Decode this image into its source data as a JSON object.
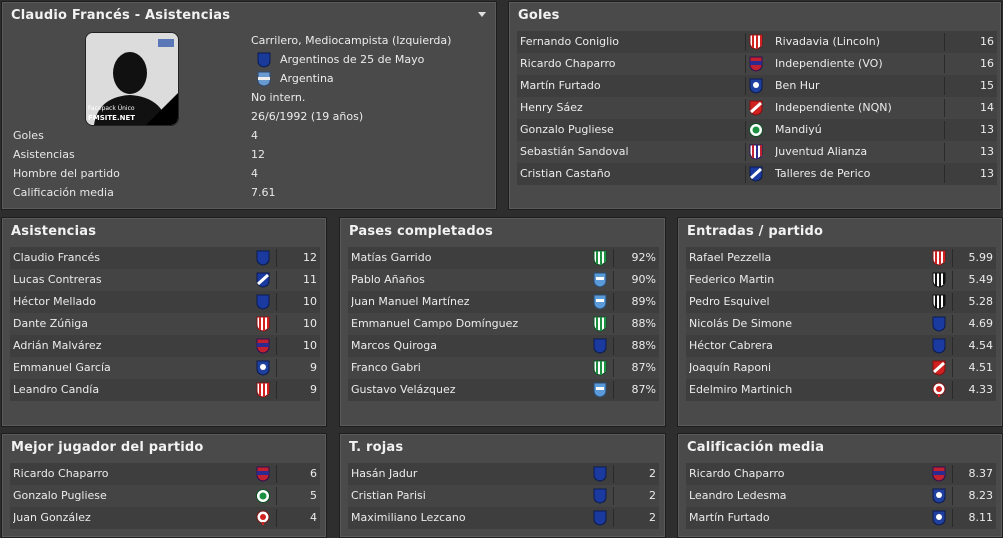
{
  "profile": {
    "title": "Claudio Francés - Asistencias",
    "position": "Carrilero, Mediocampista (Izquierda)",
    "club": "Argentinos de 25 de Mayo",
    "nation": "Argentina",
    "international": "No intern.",
    "dob": "26/6/1992 (19 años)",
    "photo_text1": "Facepack Único",
    "photo_text2": "FMSITE.NET",
    "stats": [
      {
        "label": "Goles",
        "value": "4"
      },
      {
        "label": "Asistencias",
        "value": "12"
      },
      {
        "label": "Hombre del partido",
        "value": "4"
      },
      {
        "label": "Calificación media",
        "value": "7.61"
      }
    ]
  },
  "goles": {
    "title": "Goles",
    "rows": [
      {
        "player": "Fernando Coniglio",
        "club": "Rivadavia (Lincoln)",
        "value": "16",
        "badge": "red-white-stripes-icon"
      },
      {
        "player": "Ricardo Chaparro",
        "club": "Independiente (VO)",
        "value": "16",
        "badge": "red-blue-crest-icon"
      },
      {
        "player": "Martín Furtado",
        "club": "Ben Hur",
        "value": "15",
        "badge": "blue-white-crest-icon"
      },
      {
        "player": "Henry Sáez",
        "club": "Independiente (NQN)",
        "value": "14",
        "badge": "red-white-diagonal-icon"
      },
      {
        "player": "Gonzalo Pugliese",
        "club": "Mandiyú",
        "value": "13",
        "badge": "green-white-round-icon"
      },
      {
        "player": "Sebastián Sandoval",
        "club": "Juventud Alianza",
        "value": "13",
        "badge": "red-blue-stripes-icon"
      },
      {
        "player": "Cristian Castaño",
        "club": "Talleres de Perico",
        "value": "13",
        "badge": "blue-white-diagonal-icon"
      }
    ]
  },
  "asistencias": {
    "title": "Asistencias",
    "rows": [
      {
        "player": "Claudio Francés",
        "value": "12",
        "badge": "blue-shield-icon"
      },
      {
        "player": "Lucas Contreras",
        "value": "11",
        "badge": "blue-white-diagonal-icon"
      },
      {
        "player": "Héctor Mellado",
        "value": "10",
        "badge": "blue-shield-icon"
      },
      {
        "player": "Dante Zúñiga",
        "value": "10",
        "badge": "red-white-stripes-icon"
      },
      {
        "player": "Adrián Malvárez",
        "value": "10",
        "badge": "red-blue-crest-icon"
      },
      {
        "player": "Emmanuel García",
        "value": "9",
        "badge": "blue-white-crest-icon"
      },
      {
        "player": "Leandro Candía",
        "value": "9",
        "badge": "red-white-stripes-icon"
      }
    ]
  },
  "pases": {
    "title": "Pases completados",
    "rows": [
      {
        "player": "Matías Garrido",
        "value": "92%",
        "badge": "green-white-stripes-icon"
      },
      {
        "player": "Pablo Añaños",
        "value": "90%",
        "badge": "lightblue-shield-icon"
      },
      {
        "player": "Juan Manuel Martínez",
        "value": "89%",
        "badge": "lightblue-shield-icon"
      },
      {
        "player": "Emmanuel Campo Domínguez",
        "value": "88%",
        "badge": "green-white-stripes-icon"
      },
      {
        "player": "Marcos Quiroga",
        "value": "88%",
        "badge": "blue-shield-icon"
      },
      {
        "player": "Franco Gabri",
        "value": "87%",
        "badge": "green-white-stripes-icon"
      },
      {
        "player": "Gustavo Velázquez",
        "value": "87%",
        "badge": "lightblue-shield-icon"
      }
    ]
  },
  "entradas": {
    "title": "Entradas / partido",
    "rows": [
      {
        "player": "Rafael Pezzella",
        "value": "5.99",
        "badge": "red-white-stripes-icon"
      },
      {
        "player": "Federico Martin",
        "value": "5.49",
        "badge": "black-white-stripes-icon"
      },
      {
        "player": "Pedro Esquivel",
        "value": "5.28",
        "badge": "black-white-stripes-icon"
      },
      {
        "player": "Nicolás De Simone",
        "value": "4.69",
        "badge": "blue-shield-icon"
      },
      {
        "player": "Héctor Cabrera",
        "value": "4.54",
        "badge": "blue-shield-icon"
      },
      {
        "player": "Joaquín Raponi",
        "value": "4.51",
        "badge": "red-white-diagonal-icon"
      },
      {
        "player": "Edelmiro Martinich",
        "value": "4.33",
        "badge": "red-white-round-icon"
      }
    ]
  },
  "mejor": {
    "title": "Mejor jugador del partido",
    "rows": [
      {
        "player": "Ricardo Chaparro",
        "value": "6",
        "badge": "red-blue-crest-icon"
      },
      {
        "player": "Gonzalo Pugliese",
        "value": "5",
        "badge": "green-white-round-icon"
      },
      {
        "player": "Juan González",
        "value": "4",
        "badge": "red-white-round-icon"
      }
    ]
  },
  "rojas": {
    "title": "T. rojas",
    "rows": [
      {
        "player": "Hasán Jadur",
        "value": "2",
        "badge": "blue-shield-icon"
      },
      {
        "player": "Cristian Parisi",
        "value": "2",
        "badge": "blue-shield-icon"
      },
      {
        "player": "Maximiliano Lezcano",
        "value": "2",
        "badge": "blue-shield-icon"
      }
    ]
  },
  "calificacion": {
    "title": "Calificación media",
    "rows": [
      {
        "player": "Ricardo Chaparro",
        "value": "8.37",
        "badge": "red-blue-crest-icon"
      },
      {
        "player": "Leandro Ledesma",
        "value": "8.23",
        "badge": "blue-white-crest-icon"
      },
      {
        "player": "Martín Furtado",
        "value": "8.11",
        "badge": "blue-white-crest-icon"
      }
    ]
  }
}
